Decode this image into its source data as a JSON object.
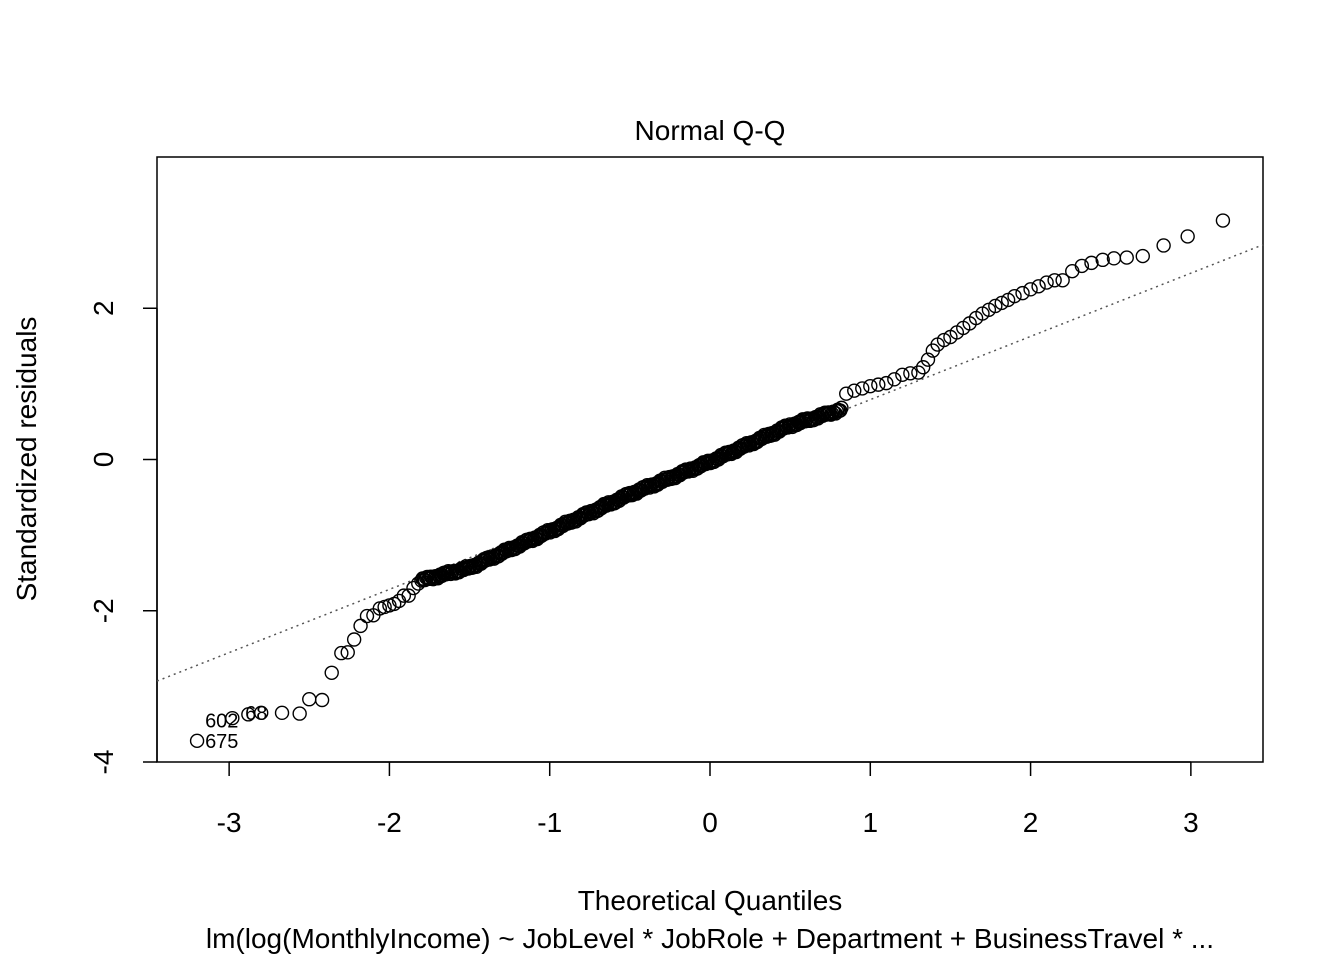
{
  "chart_data": {
    "type": "scatter",
    "title": "Normal Q-Q",
    "xlabel": "Theoretical Quantiles",
    "ylabel": "Standardized residuals",
    "subtitle": "lm(log(MonthlyIncome) ~ JobLevel * JobRole + Department + BusinessTravel *  ...",
    "xlim": [
      -3.45,
      3.45
    ],
    "ylim": [
      -4.0,
      4.0
    ],
    "x_ticks": [
      -3,
      -2,
      -1,
      0,
      1,
      2,
      3
    ],
    "y_ticks": [
      -4,
      -2,
      0,
      2
    ],
    "x_tick_labels": [
      "-3",
      "-2",
      "-1",
      "0",
      "1",
      "2",
      "3"
    ],
    "y_tick_labels": [
      "-4",
      "-2",
      "0",
      "2"
    ],
    "reference_line": {
      "style": "dotted",
      "x": [
        -3.45,
        3.45
      ],
      "y": [
        -2.93,
        2.84
      ]
    },
    "point_labels": [
      {
        "text": "602",
        "x": -3.2,
        "y": -3.45
      },
      {
        "text": "68",
        "x": -2.95,
        "y": -3.35
      },
      {
        "text": "675",
        "x": -3.2,
        "y": -3.72
      }
    ],
    "points_explicit": [
      [
        -3.2,
        -3.72
      ],
      [
        -2.98,
        -3.42
      ],
      [
        -2.88,
        -3.37
      ],
      [
        -2.8,
        -3.35
      ],
      [
        -2.67,
        -3.35
      ],
      [
        -2.56,
        -3.36
      ],
      [
        -2.5,
        -3.17
      ],
      [
        -2.42,
        -3.18
      ],
      [
        -2.36,
        -2.82
      ],
      [
        -2.3,
        -2.56
      ],
      [
        -2.26,
        -2.55
      ],
      [
        -2.22,
        -2.38
      ],
      [
        -2.18,
        -2.2
      ],
      [
        -2.14,
        -2.07
      ],
      [
        -2.1,
        -2.06
      ],
      [
        -2.06,
        -1.97
      ],
      [
        -2.03,
        -1.95
      ],
      [
        -2.0,
        -1.93
      ],
      [
        -1.97,
        -1.91
      ],
      [
        -1.94,
        -1.87
      ],
      [
        -1.91,
        -1.8
      ],
      [
        -1.88,
        -1.8
      ],
      [
        -1.85,
        -1.7
      ],
      [
        -1.82,
        -1.64
      ],
      [
        0.85,
        0.87
      ],
      [
        0.9,
        0.91
      ],
      [
        0.95,
        0.94
      ],
      [
        1.0,
        0.97
      ],
      [
        1.05,
        0.99
      ],
      [
        1.1,
        1.01
      ],
      [
        1.15,
        1.06
      ],
      [
        1.2,
        1.12
      ],
      [
        1.25,
        1.14
      ],
      [
        1.3,
        1.15
      ],
      [
        1.33,
        1.22
      ],
      [
        1.36,
        1.32
      ],
      [
        1.39,
        1.44
      ],
      [
        1.42,
        1.52
      ],
      [
        1.46,
        1.58
      ],
      [
        1.5,
        1.62
      ],
      [
        1.54,
        1.68
      ],
      [
        1.58,
        1.74
      ],
      [
        1.62,
        1.8
      ],
      [
        1.66,
        1.87
      ],
      [
        1.7,
        1.93
      ],
      [
        1.74,
        1.98
      ],
      [
        1.78,
        2.03
      ],
      [
        1.82,
        2.07
      ],
      [
        1.86,
        2.11
      ],
      [
        1.9,
        2.16
      ],
      [
        1.95,
        2.2
      ],
      [
        2.0,
        2.25
      ],
      [
        2.05,
        2.29
      ],
      [
        2.1,
        2.34
      ],
      [
        2.15,
        2.37
      ],
      [
        2.2,
        2.37
      ],
      [
        2.26,
        2.49
      ],
      [
        2.32,
        2.56
      ],
      [
        2.38,
        2.6
      ],
      [
        2.45,
        2.64
      ],
      [
        2.52,
        2.66
      ],
      [
        2.6,
        2.67
      ],
      [
        2.7,
        2.69
      ],
      [
        2.83,
        2.83
      ],
      [
        2.98,
        2.95
      ],
      [
        3.2,
        3.16
      ]
    ],
    "points_bulk": {
      "count": 360,
      "x_range": [
        -1.8,
        0.82
      ],
      "knots": [
        [
          -1.8,
          -1.6
        ],
        [
          -1.5,
          -1.43
        ],
        [
          -1.0,
          -0.95
        ],
        [
          -0.5,
          -0.46
        ],
        [
          0.0,
          -0.03
        ],
        [
          0.5,
          0.45
        ],
        [
          0.82,
          0.66
        ]
      ]
    }
  }
}
